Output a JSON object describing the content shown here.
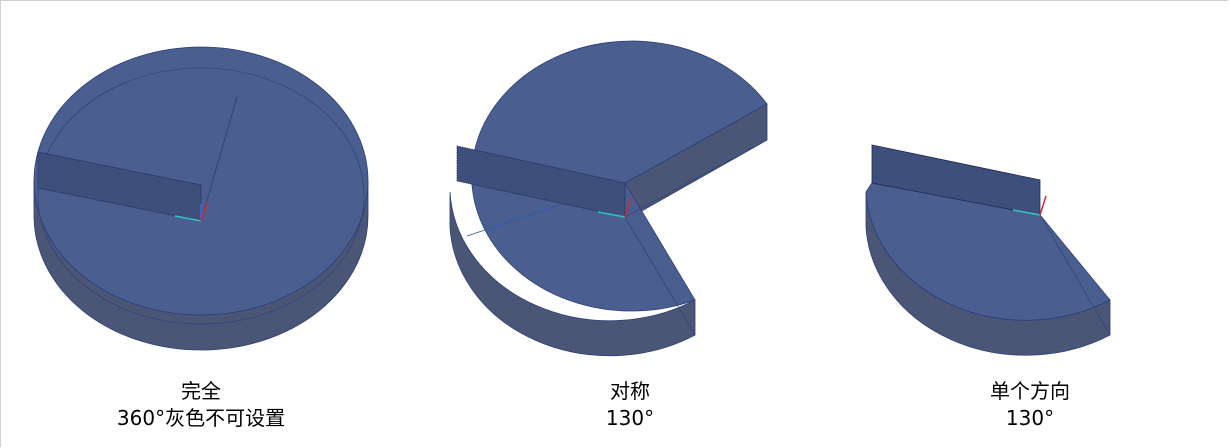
{
  "colors": {
    "top_face": "#4a5e8f",
    "side_face": "#4b5677",
    "edge": "#2a3f7a",
    "sketch": "#3d4c78"
  },
  "shapes": [
    {
      "title": "完全",
      "subtitle": "360°灰色不可设置"
    },
    {
      "title": "对称",
      "subtitle": "130°"
    },
    {
      "title": "单个方向",
      "subtitle": "130°"
    }
  ]
}
